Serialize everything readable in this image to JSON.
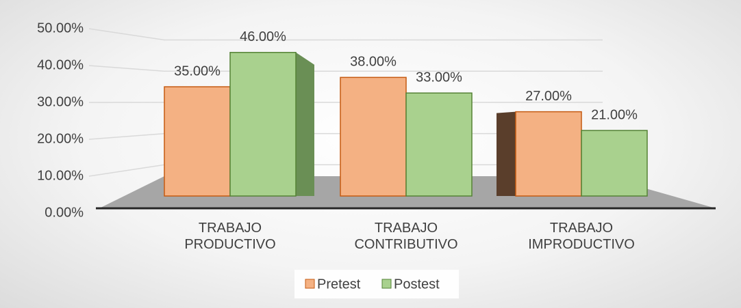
{
  "chart_data": {
    "type": "bar",
    "categories": [
      "TRABAJO PRODUCTIVO",
      "TRABAJO CONTRIBUTIVO",
      "TRABAJO IMPRODUCTIVO"
    ],
    "series": [
      {
        "name": "Pretest",
        "color": "#f4b183",
        "values": [
          35,
          38,
          27
        ],
        "value_labels": [
          "35.00%",
          "38.00%",
          "27.00%"
        ]
      },
      {
        "name": "Postest",
        "color": "#a9d18e",
        "values": [
          46,
          33,
          21
        ],
        "value_labels": [
          "46.00%",
          "33.00%",
          "21.00%"
        ]
      }
    ],
    "ylim": [
      0,
      50
    ],
    "yticks": [
      {
        "value": 0,
        "label": "0.00%"
      },
      {
        "value": 10,
        "label": "10.00%"
      },
      {
        "value": 20,
        "label": "20.00%"
      },
      {
        "value": 30,
        "label": "30.00%"
      },
      {
        "value": 40,
        "label": "40.00%"
      },
      {
        "value": 50,
        "label": "50.00%"
      }
    ],
    "grid": true,
    "legend": "bottom"
  }
}
